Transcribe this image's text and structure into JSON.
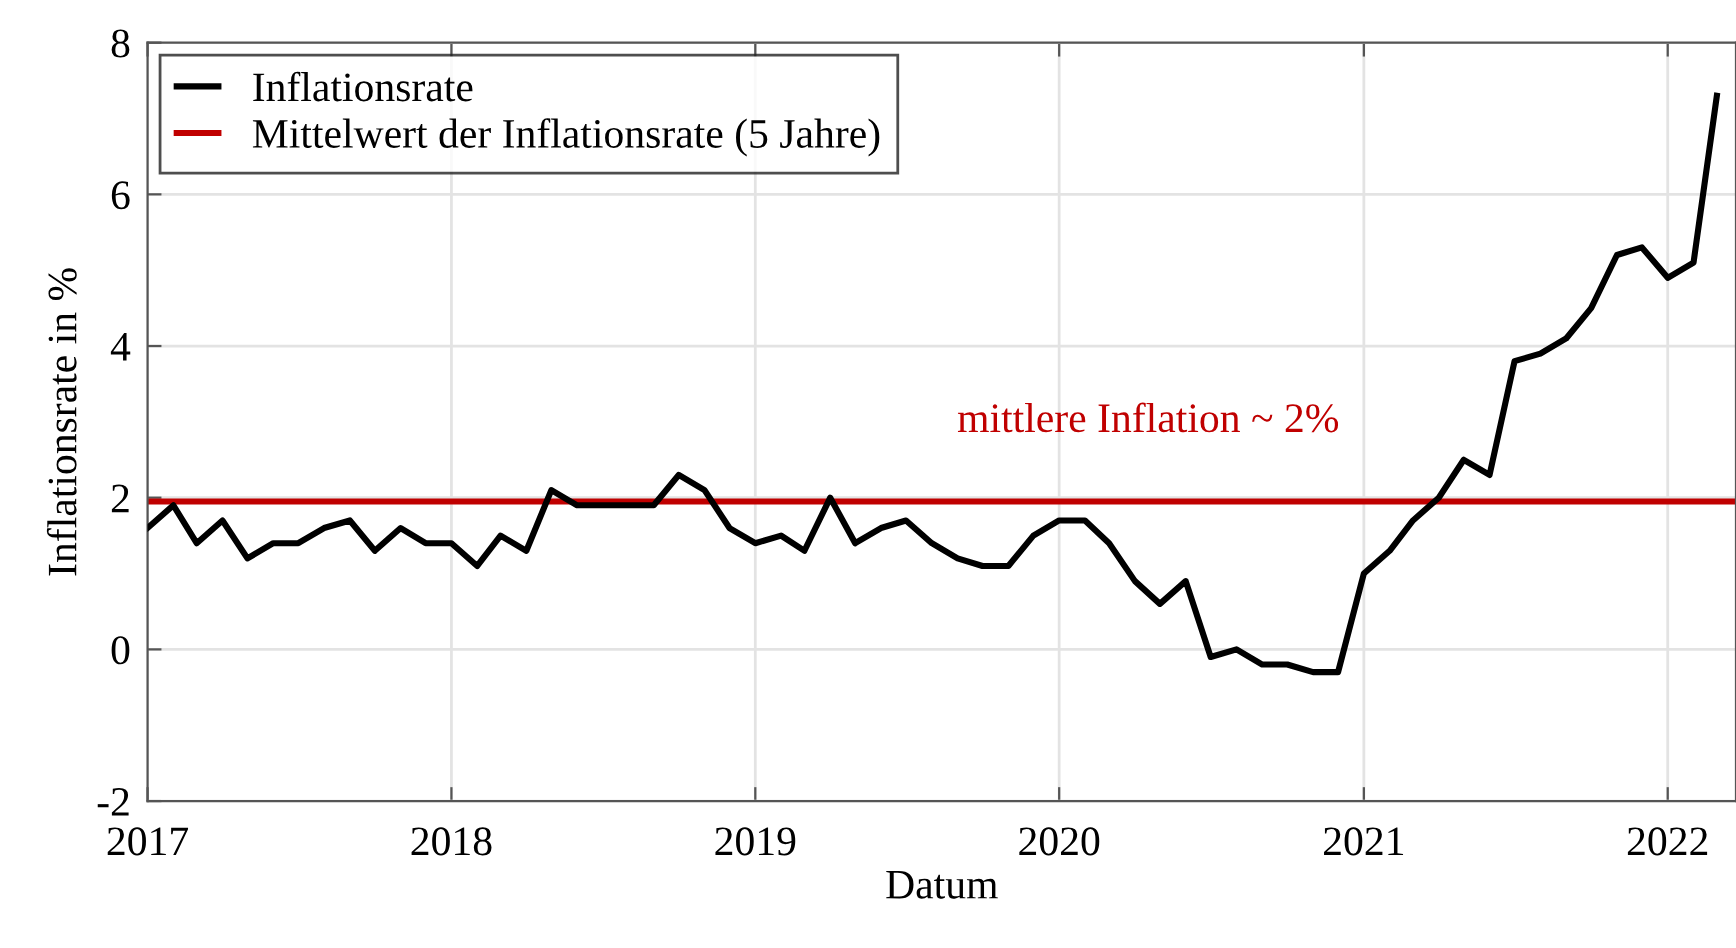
{
  "chart_data": {
    "type": "line",
    "xlabel": "Datum",
    "ylabel": "Inflationsrate in %",
    "x": [
      "2017-01",
      "2017-02",
      "2017-03",
      "2017-04",
      "2017-05",
      "2017-06",
      "2017-07",
      "2017-08",
      "2017-09",
      "2017-10",
      "2017-11",
      "2017-12",
      "2018-01",
      "2018-02",
      "2018-03",
      "2018-04",
      "2018-05",
      "2018-06",
      "2018-07",
      "2018-08",
      "2018-09",
      "2018-10",
      "2018-11",
      "2018-12",
      "2019-01",
      "2019-02",
      "2019-03",
      "2019-04",
      "2019-05",
      "2019-06",
      "2019-07",
      "2019-08",
      "2019-09",
      "2019-10",
      "2019-11",
      "2019-12",
      "2020-01",
      "2020-02",
      "2020-03",
      "2020-04",
      "2020-05",
      "2020-06",
      "2020-07",
      "2020-08",
      "2020-09",
      "2020-10",
      "2020-11",
      "2020-12",
      "2021-01",
      "2021-02",
      "2021-03",
      "2021-04",
      "2021-05",
      "2021-06",
      "2021-07",
      "2021-08",
      "2021-09",
      "2021-10",
      "2021-11",
      "2021-12",
      "2022-01",
      "2022-02",
      "2022-03"
    ],
    "series": [
      {
        "name": "Inflationsrate",
        "color": "#000000",
        "values": [
          1.6,
          1.9,
          1.4,
          1.7,
          1.2,
          1.4,
          1.4,
          1.6,
          1.7,
          1.3,
          1.6,
          1.4,
          1.4,
          1.1,
          1.5,
          1.3,
          2.1,
          1.9,
          1.9,
          1.9,
          1.9,
          2.3,
          2.1,
          1.6,
          1.4,
          1.5,
          1.3,
          2.0,
          1.4,
          1.6,
          1.7,
          1.4,
          1.2,
          1.1,
          1.1,
          1.5,
          1.7,
          1.7,
          1.4,
          0.9,
          0.6,
          0.9,
          -0.1,
          0.0,
          -0.2,
          -0.2,
          -0.3,
          -0.3,
          1.0,
          1.3,
          1.7,
          2.0,
          2.5,
          2.3,
          3.8,
          3.9,
          4.1,
          4.5,
          5.2,
          5.3,
          4.9,
          5.1,
          7.3
        ]
      }
    ],
    "ref_lines": [
      {
        "axis": "y",
        "value": 1.95,
        "label": "Mittelwert der Inflationsrate (5 Jahre)",
        "color": "#c00000"
      }
    ],
    "annotations": [
      "mittlere Inflation ~ 2%"
    ],
    "xlim": [
      "2017-01-01",
      "2022-03-24"
    ],
    "xticks": [
      "2017",
      "2018",
      "2019",
      "2020",
      "2021",
      "2022"
    ],
    "ylim": [
      -2,
      8
    ],
    "yticks": [
      -2,
      0,
      2,
      4,
      6,
      8
    ],
    "grid": true,
    "legend": "top left",
    "marker": "none",
    "line_style": "solid"
  }
}
